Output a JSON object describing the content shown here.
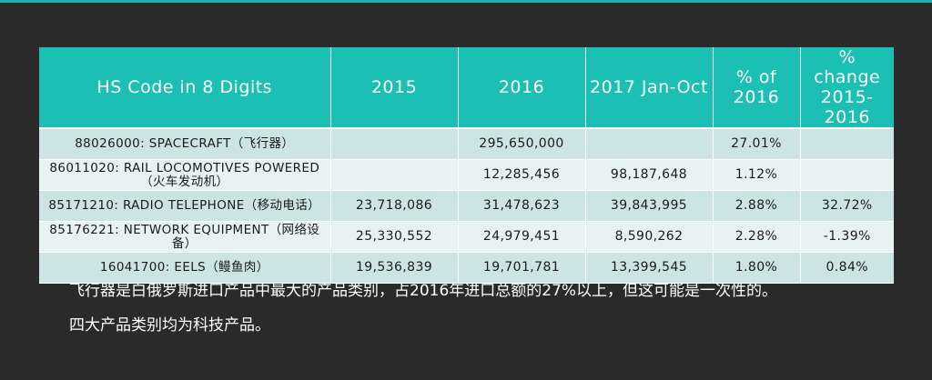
{
  "table": {
    "headers": [
      "HS Code in 8 Digits",
      "2015",
      "2016",
      "2017 Jan-Oct",
      "% of 2016",
      "% change 2015-2016"
    ],
    "rows": [
      {
        "code": "88026000: SPACECRAFT（飞行器）",
        "y2015": "",
        "y2016": "295,650,000",
        "y2017": "",
        "share": "27.01%",
        "change": ""
      },
      {
        "code": "86011020: RAIL LOCOMOTIVES POWERED（火车发动机）",
        "y2015": "",
        "y2016": "12,285,456",
        "y2017": "98,187,648",
        "share": "1.12%",
        "change": ""
      },
      {
        "code": "85171210: RADIO TELEPHONE（移动电话）",
        "y2015": "23,718,086",
        "y2016": "31,478,623",
        "y2017": "39,843,995",
        "share": "2.88%",
        "change": "32.72%"
      },
      {
        "code": "85176221: NETWORK EQUIPMENT（网络设备）",
        "y2015": "25,330,552",
        "y2016": "24,979,451",
        "y2017": "8,590,262",
        "share": "2.28%",
        "change": "-1.39%"
      },
      {
        "code": "16041700: EELS（鳗鱼肉）",
        "y2015": "19,536,839",
        "y2016": "19,701,781",
        "y2017": "13,399,545",
        "share": "1.80%",
        "change": "0.84%"
      }
    ]
  },
  "caption": {
    "line1": "飞行器是白俄罗斯进口产品中最大的产品类别，占2016年进口总额的27%以上，但这可能是一次性的。",
    "line2": "四大产品类别均为科技产品。"
  },
  "colors": {
    "background": "#2a2a2a",
    "header": "#1bbfb3",
    "row_odd": "#cce5e3",
    "row_even": "#e7f3f2",
    "accent": "#19b3a6"
  }
}
